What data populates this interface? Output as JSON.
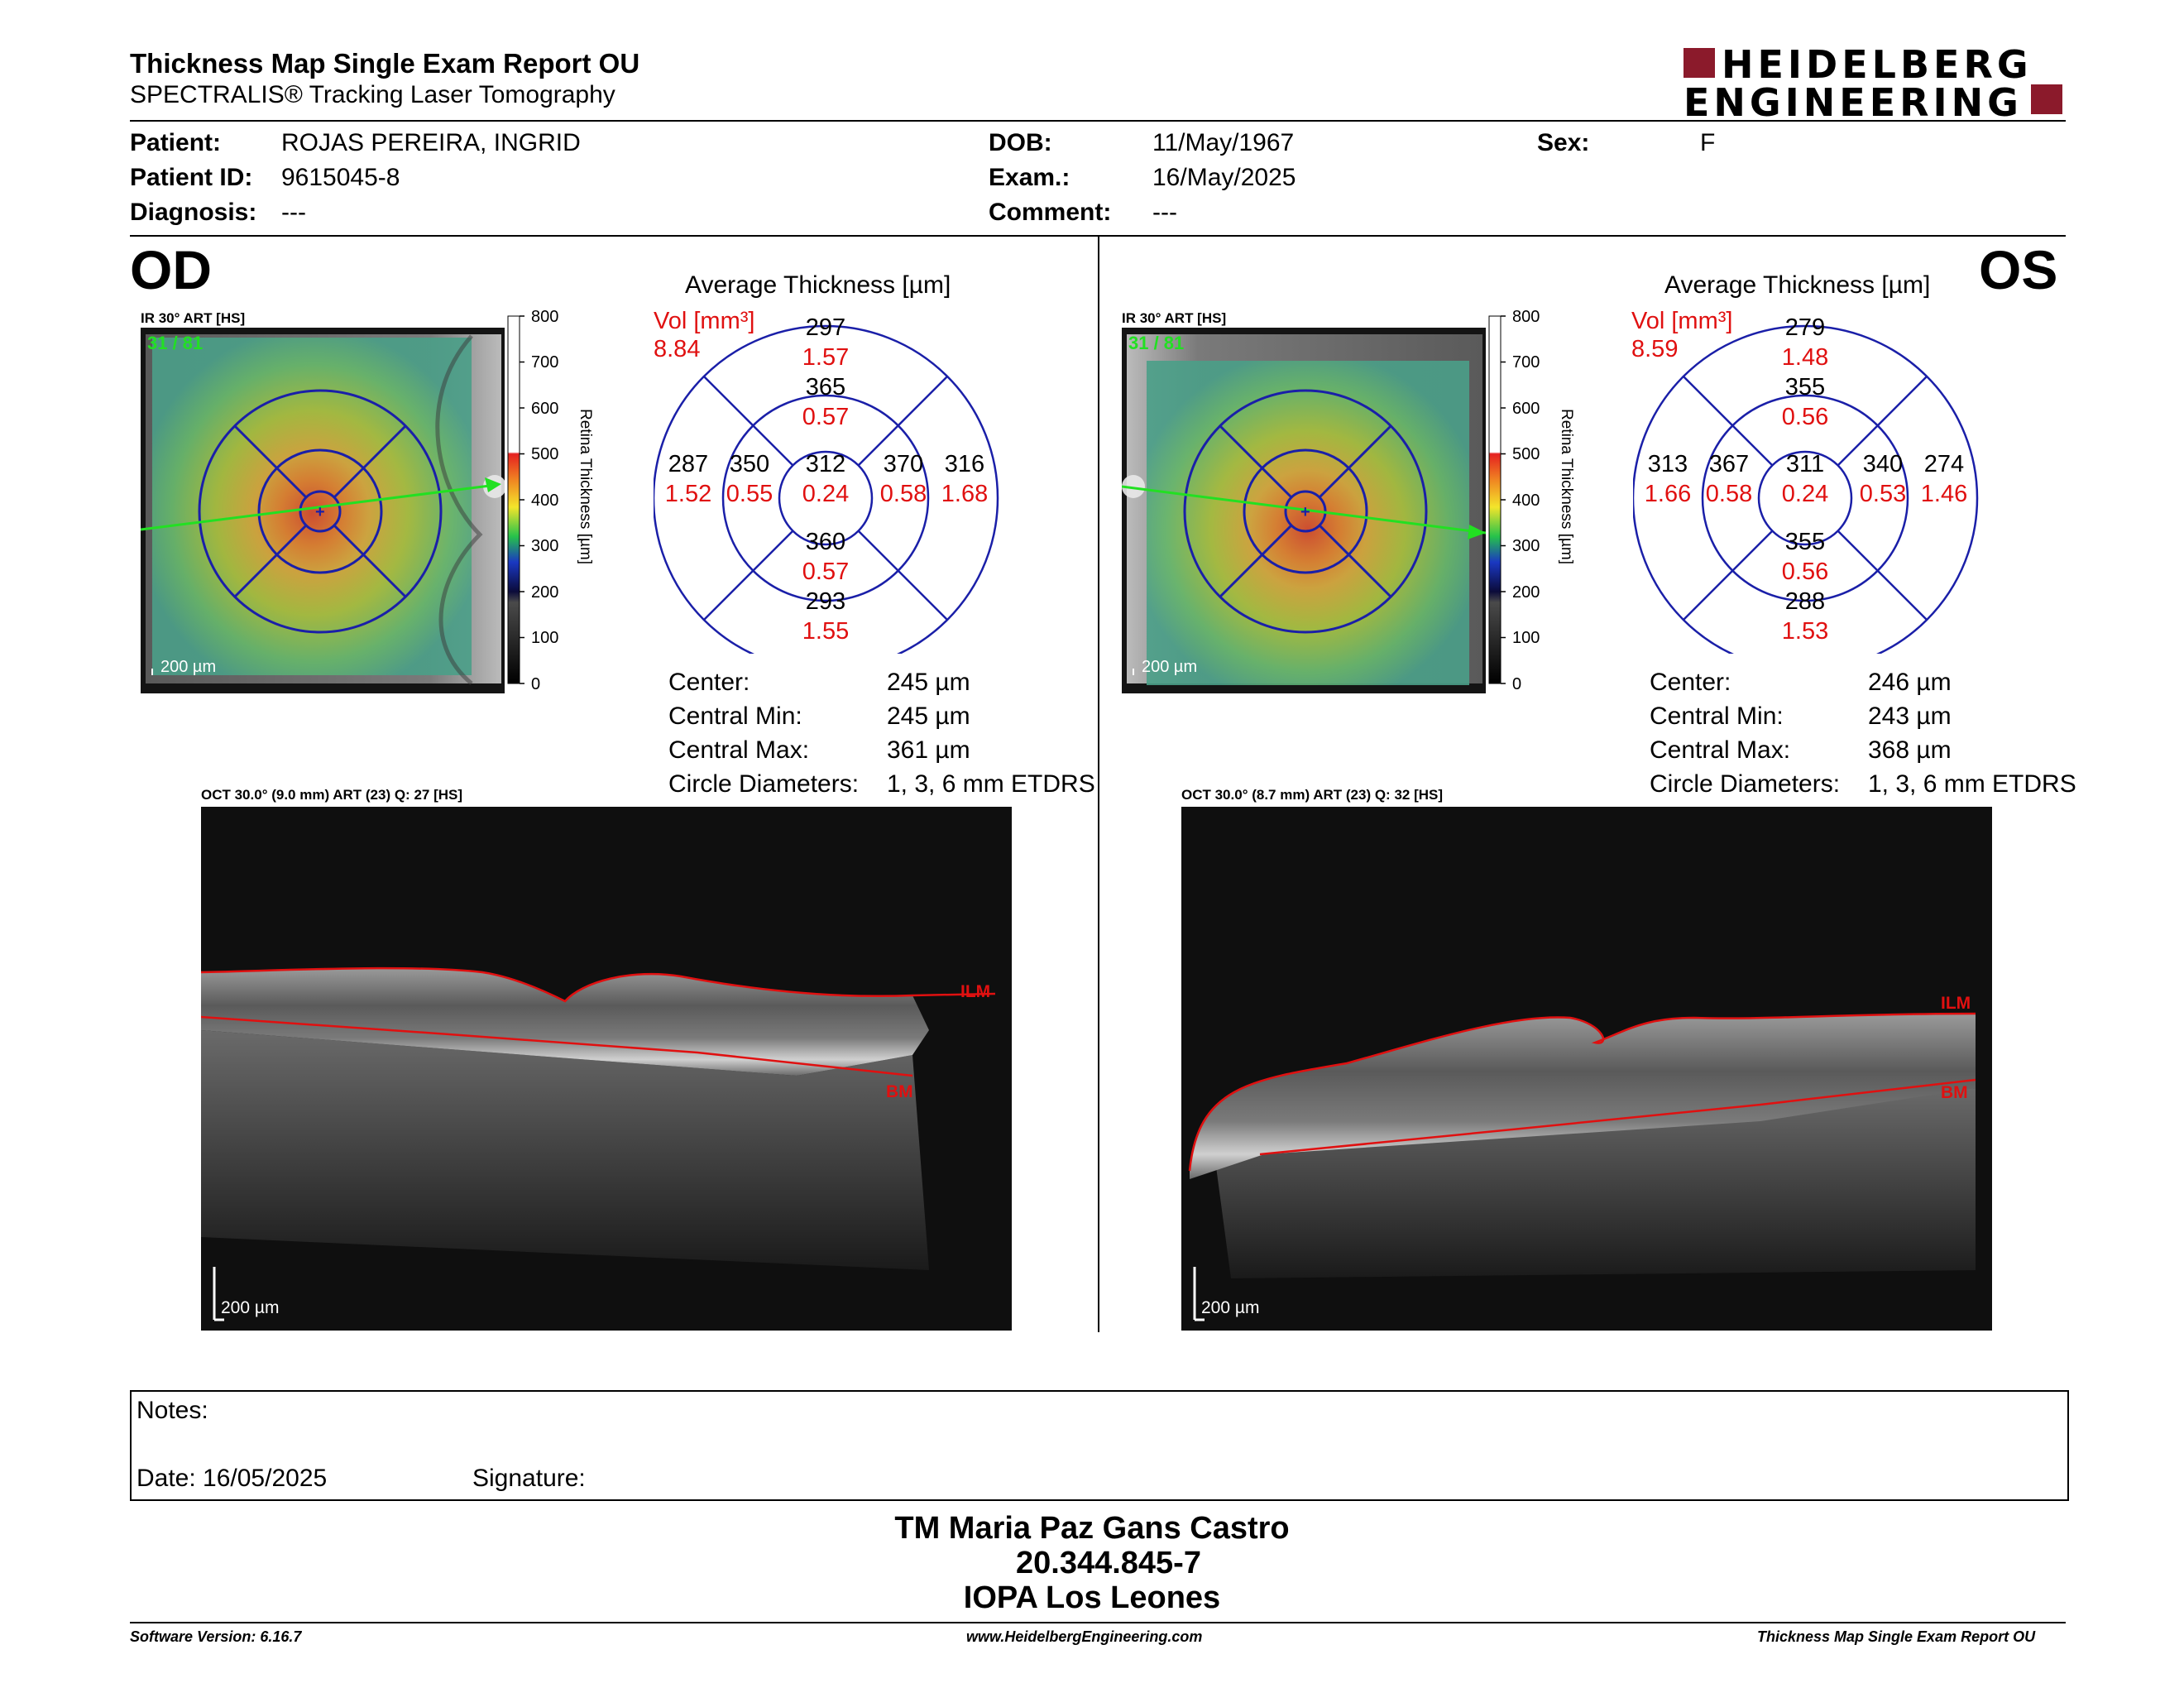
{
  "header": {
    "title": "Thickness Map Single Exam Report OU",
    "subtitle": "SPECTRALIS® Tracking Laser Tomography",
    "logo_line1": "HEIDELBERG",
    "logo_line2": "ENGINEERING",
    "brand_color": "#8b1a2b"
  },
  "patient": {
    "patient_label": "Patient:",
    "patient_value": "ROJAS PEREIRA, INGRID",
    "id_label": "Patient ID:",
    "id_value": "9615045-8",
    "diagnosis_label": "Diagnosis:",
    "diagnosis_value": "---",
    "dob_label": "DOB:",
    "dob_value": "11/May/1967",
    "exam_label": "Exam.:",
    "exam_value": "16/May/2025",
    "comment_label": "Comment:",
    "comment_value": "---",
    "sex_label": "Sex:",
    "sex_value": "F"
  },
  "od": {
    "eye_label": "OD",
    "ir_label": "IR 30° ART [HS]",
    "frame_count": "31 / 81",
    "scale_label": "200 µm",
    "grid_title": "Average Thickness [µm]",
    "vol_label": "Vol [mm³]",
    "vol_total": "8.84",
    "sectors": {
      "center": {
        "t": "312",
        "v": "0.24"
      },
      "inner_sup": {
        "t": "365",
        "v": "0.57"
      },
      "inner_inf": {
        "t": "360",
        "v": "0.57"
      },
      "inner_left": {
        "t": "350",
        "v": "0.55"
      },
      "inner_right": {
        "t": "370",
        "v": "0.58"
      },
      "outer_sup": {
        "t": "297",
        "v": "1.57"
      },
      "outer_inf": {
        "t": "293",
        "v": "1.55"
      },
      "outer_left": {
        "t": "287",
        "v": "1.52"
      },
      "outer_right": {
        "t": "316",
        "v": "1.68"
      }
    },
    "stats": [
      {
        "label": "Center:",
        "value": "245 µm"
      },
      {
        "label": "Central Min:",
        "value": "245 µm"
      },
      {
        "label": "Central Max:",
        "value": "361 µm"
      },
      {
        "label": "Circle Diameters:",
        "value": "1, 3, 6 mm ETDRS"
      }
    ],
    "oct_label": "OCT 30.0° (9.0 mm) ART (23) Q: 27 [HS]",
    "oct_scale": "200 µm",
    "ilm": "ILM",
    "bm": "BM"
  },
  "os": {
    "eye_label": "OS",
    "ir_label": "IR 30° ART [HS]",
    "frame_count": "31 / 81",
    "scale_label": "200 µm",
    "grid_title": "Average Thickness [µm]",
    "vol_label": "Vol [mm³]",
    "vol_total": "8.59",
    "sectors": {
      "center": {
        "t": "311",
        "v": "0.24"
      },
      "inner_sup": {
        "t": "355",
        "v": "0.56"
      },
      "inner_inf": {
        "t": "355",
        "v": "0.56"
      },
      "inner_left": {
        "t": "367",
        "v": "0.58"
      },
      "inner_right": {
        "t": "340",
        "v": "0.53"
      },
      "outer_sup": {
        "t": "279",
        "v": "1.48"
      },
      "outer_inf": {
        "t": "288",
        "v": "1.53"
      },
      "outer_left": {
        "t": "313",
        "v": "1.66"
      },
      "outer_right": {
        "t": "274",
        "v": "1.46"
      }
    },
    "stats": [
      {
        "label": "Center:",
        "value": "246 µm"
      },
      {
        "label": "Central Min:",
        "value": "243 µm"
      },
      {
        "label": "Central Max:",
        "value": "368 µm"
      },
      {
        "label": "Circle Diameters:",
        "value": "1, 3, 6 mm ETDRS"
      }
    ],
    "oct_label": "OCT 30.0° (8.7 mm) ART (23) Q: 32 [HS]",
    "oct_scale": "200 µm",
    "ilm": "ILM",
    "bm": "BM"
  },
  "colorbar": {
    "ticks": [
      "800",
      "700",
      "600",
      "500",
      "400",
      "300",
      "200",
      "100",
      "0"
    ],
    "title": "Retina Thickness [µm]"
  },
  "notes": {
    "notes_label": "Notes:",
    "date_label": "Date: 16/05/2025",
    "signature_label": "Signature:"
  },
  "signatory": {
    "name": "TM Maria Paz Gans Castro",
    "rut": "20.344.845-7",
    "institution": "IOPA Los Leones"
  },
  "footer": {
    "software": "Software Version: 6.16.7",
    "website": "www.HeidelbergEngineering.com",
    "report": "Thickness Map Single Exam Report OU"
  }
}
